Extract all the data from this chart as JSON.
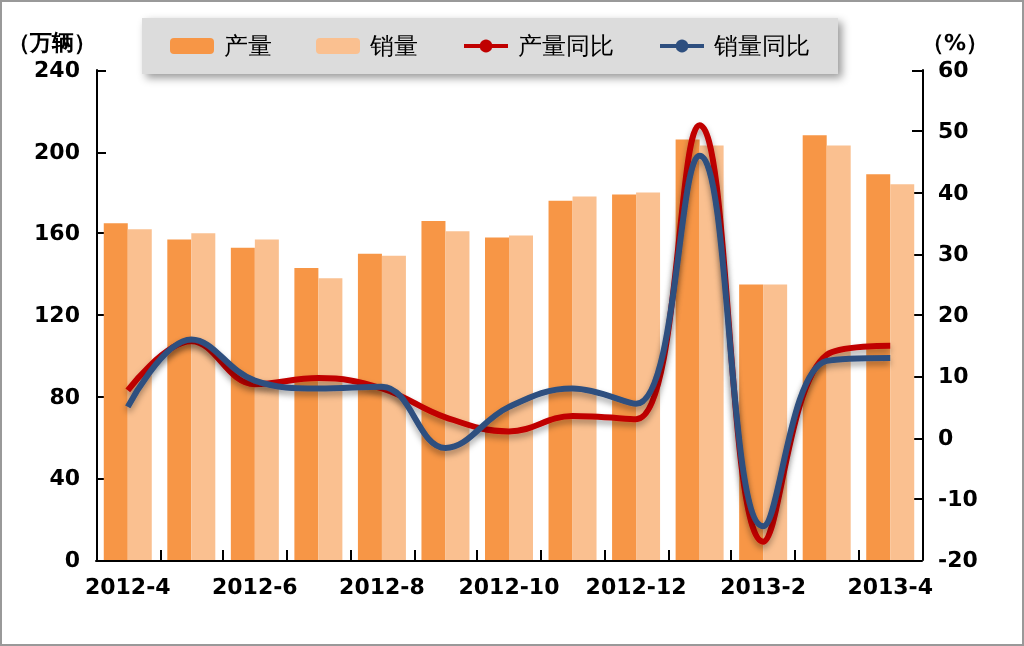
{
  "chart_data": {
    "type": "bar",
    "ylabel": "（万辆）",
    "y2label": "（%）",
    "categories": [
      "2012-4",
      null,
      "2012-6",
      null,
      "2012-8",
      null,
      "2012-10",
      null,
      "2012-12",
      null,
      "2013-2",
      null,
      "2013-4"
    ],
    "series": [
      {
        "name": "产量",
        "color": "#f79646",
        "values": [
          165,
          157,
          153,
          143,
          150,
          166,
          158,
          176,
          179,
          206,
          135,
          208,
          189
        ]
      },
      {
        "name": "销量",
        "color": "#fac090",
        "values": [
          162,
          160,
          157,
          138,
          149,
          161,
          159,
          178,
          180,
          203,
          135,
          203,
          184
        ]
      },
      {
        "name": "产量同比",
        "type": "line",
        "axis": "y2",
        "color": "#c00000",
        "values": [
          7.7,
          15.7,
          8.7,
          9.7,
          8,
          3.3,
          1,
          3.5,
          3,
          51,
          -17,
          13.5,
          15
        ]
      },
      {
        "name": "销量同比",
        "type": "line",
        "axis": "y2",
        "color": "#2e4f7f",
        "values": [
          5,
          16,
          9.3,
          8,
          8.3,
          -1.7,
          5,
          8,
          5.5,
          46,
          -14.5,
          12.5,
          13
        ]
      }
    ],
    "ylim": [
      0,
      240
    ],
    "yticks": [
      0,
      40,
      80,
      120,
      160,
      200,
      240
    ],
    "y2lim": [
      -20,
      60
    ],
    "y2ticks": [
      -20,
      -10,
      0,
      10,
      20,
      30,
      40,
      50,
      60
    ],
    "grid": false,
    "legend": "top",
    "marker": "none",
    "line_style": "solid"
  }
}
